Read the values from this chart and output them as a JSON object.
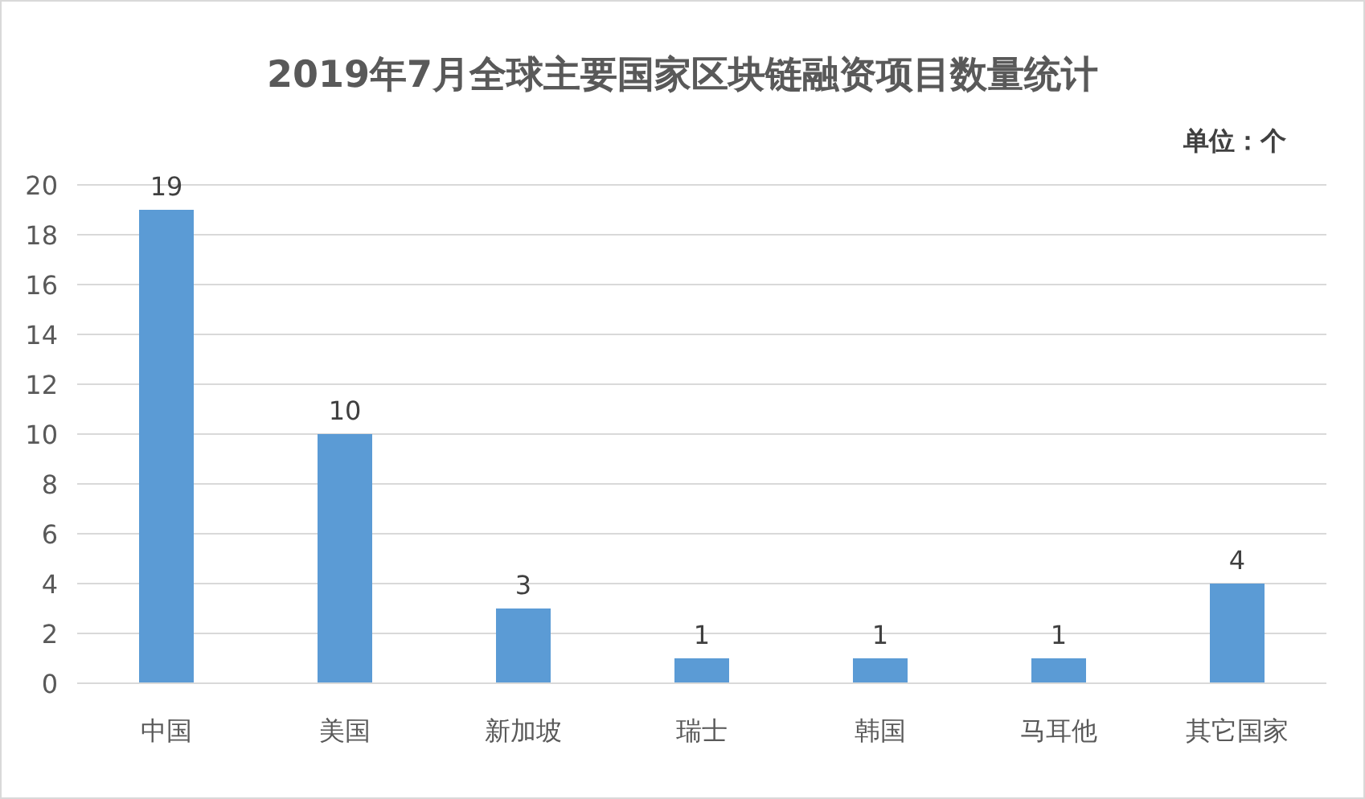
{
  "chart_data": {
    "type": "bar",
    "title": "2019年7月全球主要国家区块链融资项目数量统计",
    "annotations": [
      "单位：个"
    ],
    "categories": [
      "中国",
      "美国",
      "新加坡",
      "瑞士",
      "韩国",
      "马耳他",
      "其它国家"
    ],
    "values": [
      19,
      10,
      3,
      1,
      1,
      1,
      4
    ],
    "color": "#5b9bd5",
    "ylim": [
      0,
      20
    ],
    "yticks": [
      0,
      2,
      4,
      6,
      8,
      10,
      12,
      14,
      16,
      18,
      20
    ],
    "grid": "y",
    "data_labels": true
  }
}
